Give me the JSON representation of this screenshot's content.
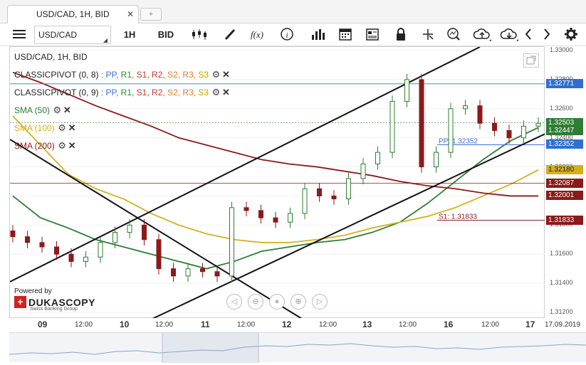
{
  "tab": {
    "label": "USD/CAD, 1H, BID",
    "close": "✕",
    "new": "+"
  },
  "toolbar": {
    "instrument": "USD/CAD",
    "timeframe": "1H",
    "price_type": "BID",
    "fx_label": "f(x)"
  },
  "legend": {
    "title": "USD/CAD, 1H, BID",
    "pivot1": {
      "name": "CLASSICPIVOT (0, 8)",
      "sep": ":"
    },
    "pivot2": {
      "name": "CLASSICPIVOT (0, 9)",
      "sep": ":"
    },
    "pivot_levels": [
      "PP,",
      "R1,",
      "S1,",
      "R2,",
      "S2,",
      "R3,",
      "S3"
    ],
    "pivot_colors": [
      "#3a6fd8",
      "#2e8b2e",
      "#c0392b",
      "#c0392b",
      "#e67e22",
      "#e67e22",
      "#c8a000"
    ],
    "sma50": "SMA (50)",
    "sma100": "SMA (100)",
    "sma200": "SMA (200)"
  },
  "colors": {
    "sma50": "#2e7d32",
    "sma100": "#d4b020",
    "sma200": "#8b1a1a",
    "pp": "#3a6fd8",
    "s1": "#8b1a1a",
    "candle_up": "#2e7d32",
    "candle_down": "#8b1a1a"
  },
  "price_ticks": [
    "1.33000",
    "1.32800",
    "1.32600",
    "1.32400",
    "1.32200",
    "1.32000",
    "1.31800",
    "1.31600",
    "1.31400",
    "1.31200"
  ],
  "price_labels": [
    {
      "text": "1.32771",
      "bg": "#2f6fd0"
    },
    {
      "text": "1.32503",
      "bg": "#2e7d32"
    },
    {
      "text": "1.32447",
      "bg": "#2e7d32"
    },
    {
      "text": "1.32352",
      "bg": "#2f6fd0"
    },
    {
      "text": "1.32180",
      "bg": "#d4b020"
    },
    {
      "text": "1.32087",
      "bg": "#8b1a1a"
    },
    {
      "text": "1.32001",
      "bg": "#8b1a1a"
    },
    {
      "text": "1.31833",
      "bg": "#8b1a1a"
    }
  ],
  "chart_labels": {
    "pp": "PP: 1.32352",
    "s1": "S1: 1.31833"
  },
  "time_ticks": [
    "09",
    "12:00",
    "10",
    "12:00",
    "11",
    "12:00",
    "12",
    "12:00",
    "13",
    "12:00",
    "16",
    "12:00",
    "17",
    "17.09.2019"
  ],
  "branding": {
    "powered": "Powered by",
    "name": "DUKASCOPY",
    "sub": "Swiss Banking Group"
  },
  "chart_data": {
    "type": "candlestick",
    "title": "USD/CAD, 1H, BID",
    "ylim": [
      1.3115,
      1.3305
    ],
    "series": [
      {
        "name": "SMA (50)",
        "y": [
          1.32,
          1.3185,
          1.3178,
          1.317,
          1.3165,
          1.316,
          1.3155,
          1.315,
          1.3155,
          1.3162,
          1.3165,
          1.3168,
          1.317,
          1.3175,
          1.3182,
          1.3195,
          1.321,
          1.3225,
          1.3238,
          1.3247
        ]
      },
      {
        "name": "SMA (100)",
        "y": [
          1.3255,
          1.3235,
          1.3215,
          1.3205,
          1.3198,
          1.3188,
          1.318,
          1.3174,
          1.317,
          1.3168,
          1.3168,
          1.317,
          1.3173,
          1.3178,
          1.3182,
          1.3186,
          1.3192,
          1.32,
          1.3208,
          1.3218
        ]
      },
      {
        "name": "SMA (200)",
        "y": [
          1.3285,
          1.3278,
          1.327,
          1.3262,
          1.3255,
          1.3248,
          1.324,
          1.3235,
          1.323,
          1.3225,
          1.3222,
          1.322,
          1.3217,
          1.3214,
          1.321,
          1.3207,
          1.3205,
          1.3202,
          1.32,
          1.32
        ]
      }
    ],
    "close": [
      1.3172,
      1.3168,
      1.3165,
      1.316,
      1.3155,
      1.3158,
      1.3168,
      1.3175,
      1.318,
      1.317,
      1.315,
      1.3145,
      1.315,
      1.3148,
      1.3145,
      1.3192,
      1.319,
      1.3185,
      1.3182,
      1.3188,
      1.3205,
      1.32,
      1.3198,
      1.3212,
      1.3222,
      1.323,
      1.3265,
      1.328,
      1.322,
      1.323,
      1.326,
      1.3262,
      1.325,
      1.3245,
      1.324,
      1.3248,
      1.325
    ],
    "levels": {
      "PP": 1.32352,
      "S1": 1.31833
    }
  }
}
